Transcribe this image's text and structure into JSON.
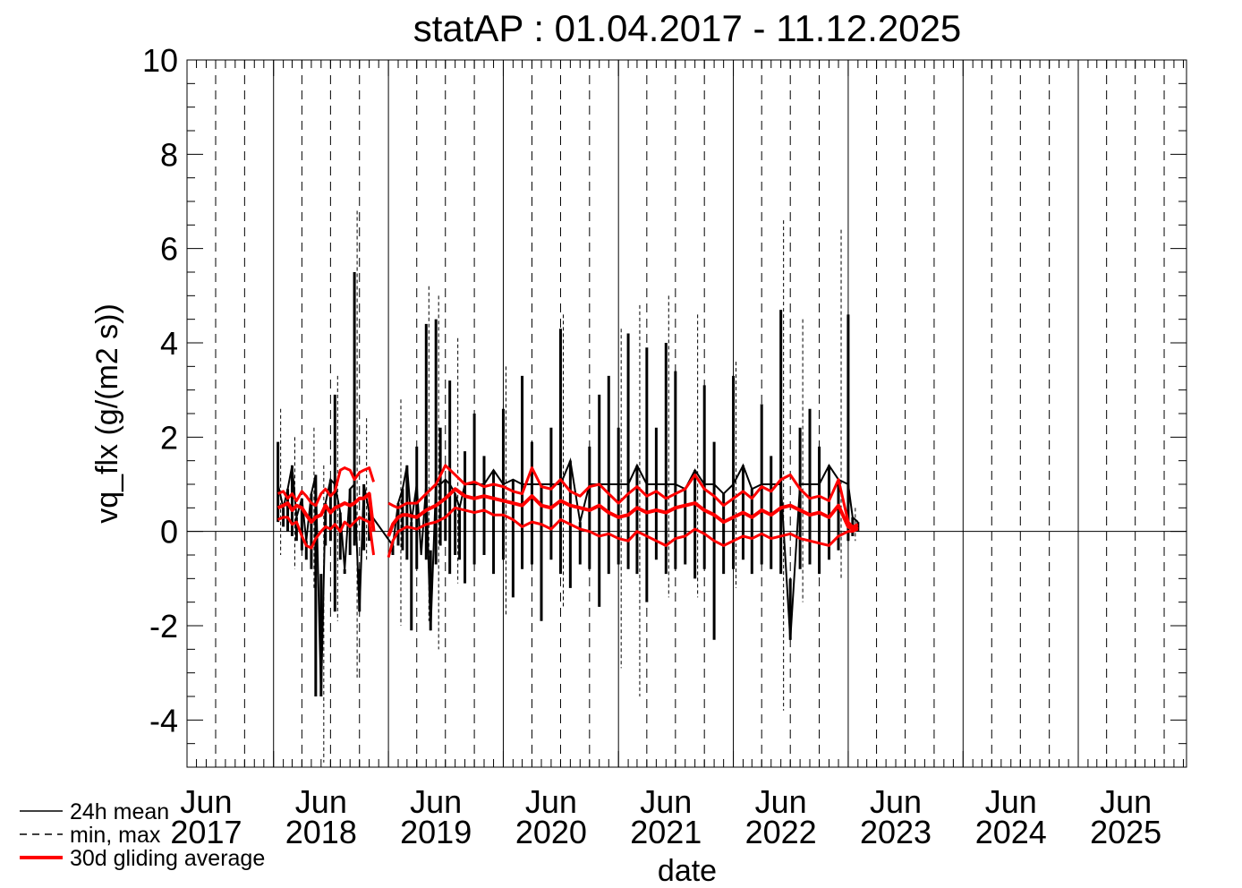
{
  "chart_data": {
    "type": "line",
    "title": "statAP : 01.04.2017 - 11.12.2025",
    "xlabel": "date",
    "ylabel": "vq_flx (g/(m2 s))",
    "xlim": [
      "2017-04-01",
      "2025-12-11"
    ],
    "ylim": [
      -5,
      10
    ],
    "yticks": [
      -4,
      -2,
      0,
      2,
      4,
      6,
      8,
      10
    ],
    "x_tick_labels": [
      {
        "date": "2017-06-01",
        "month": "Jun",
        "year": "2017"
      },
      {
        "date": "2018-06-01",
        "month": "Jun",
        "year": "2018"
      },
      {
        "date": "2019-06-01",
        "month": "Jun",
        "year": "2019"
      },
      {
        "date": "2020-06-01",
        "month": "Jun",
        "year": "2020"
      },
      {
        "date": "2021-06-01",
        "month": "Jun",
        "year": "2021"
      },
      {
        "date": "2022-06-01",
        "month": "Jun",
        "year": "2022"
      },
      {
        "date": "2023-06-01",
        "month": "Jun",
        "year": "2023"
      },
      {
        "date": "2024-06-01",
        "month": "Jun",
        "year": "2024"
      },
      {
        "date": "2025-06-01",
        "month": "Jun",
        "year": "2025"
      }
    ],
    "grid": "vertical lines at year starts (solid) and quarter starts (dashed)",
    "legend_position": "bottom-left",
    "series": [
      {
        "name": "24h mean",
        "style": "solid",
        "color": "#000000",
        "x": [
          "2018-01-15",
          "2018-02-01",
          "2018-02-15",
          "2018-03-01",
          "2018-03-15",
          "2018-04-01",
          "2018-04-15",
          "2018-05-01",
          "2018-05-15",
          "2018-06-01",
          "2018-06-15",
          "2018-07-01",
          "2018-07-15",
          "2018-08-01",
          "2018-08-15",
          "2018-09-01",
          "2018-09-15",
          "2018-10-01",
          "2018-10-15",
          "2018-11-01",
          "2019-01-15",
          "2019-02-01",
          "2019-02-15",
          "2019-03-01",
          "2019-03-15",
          "2019-04-01",
          "2019-04-15",
          "2019-05-01",
          "2019-05-15",
          "2019-06-01",
          "2019-06-15",
          "2019-07-01",
          "2019-07-15",
          "2019-08-01",
          "2019-08-15",
          "2019-09-01",
          "2019-10-01",
          "2019-11-01",
          "2019-12-01",
          "2020-01-01",
          "2020-02-01",
          "2020-03-01",
          "2020-04-01",
          "2020-05-01",
          "2020-06-01",
          "2020-07-01",
          "2020-08-01",
          "2020-09-01",
          "2020-10-01",
          "2020-11-01",
          "2020-12-01",
          "2021-01-01",
          "2021-02-01",
          "2021-03-01",
          "2021-04-01",
          "2021-05-01",
          "2021-06-01",
          "2021-07-01",
          "2021-08-01",
          "2021-09-01",
          "2021-10-01",
          "2021-11-01",
          "2021-12-01",
          "2022-01-01",
          "2022-02-01",
          "2022-03-01",
          "2022-04-01",
          "2022-05-01",
          "2022-06-01",
          "2022-07-01",
          "2022-08-01",
          "2022-09-01",
          "2022-10-01",
          "2022-11-01",
          "2022-12-01",
          "2023-01-01",
          "2023-01-15",
          "2023-02-01"
        ],
        "values": [
          1.9,
          0.5,
          0.9,
          1.4,
          0.3,
          0.7,
          -0.2,
          0.8,
          1.2,
          -3.5,
          0.6,
          1.1,
          2.9,
          0.4,
          -0.8,
          0.9,
          5.5,
          -1.7,
          1.0,
          0.4,
          -0.3,
          0.6,
          0.9,
          1.4,
          0.2,
          1.8,
          -0.5,
          4.4,
          -2.1,
          4.5,
          2.2,
          1.1,
          3.2,
          0.8,
          0.5,
          1.7,
          2.5,
          1.6,
          1.3,
          2.6,
          1.1,
          3.3,
          1.9,
          1.0,
          2.2,
          4.3,
          1.5,
          0.2,
          1.8,
          2.9,
          3.3,
          2.2,
          4.2,
          1.4,
          3.9,
          2.2,
          4.0,
          3.4,
          0.9,
          1.3,
          3.1,
          1.9,
          0.8,
          3.3,
          1.4,
          0.9,
          2.7,
          1.6,
          4.7,
          -2.3,
          2.2,
          2.6,
          1.8,
          1.4,
          1.1,
          4.6,
          0.3,
          0.2
        ],
        "lows": [
          0.2,
          0.1,
          0.0,
          -0.1,
          -0.2,
          -0.4,
          -0.6,
          -0.8,
          -3.5,
          -0.9,
          -0.3,
          -0.2,
          -1.7,
          -0.6,
          -0.9,
          -0.5,
          -0.3,
          -0.8,
          -0.4,
          -0.2,
          -0.5,
          -0.3,
          -0.4,
          -0.6,
          -2.1,
          -0.8,
          -0.5,
          -0.6,
          -0.4,
          -0.7,
          -0.3,
          -0.2,
          -0.9,
          -0.5,
          -0.6,
          -1.1,
          -0.7,
          -0.5,
          -0.9,
          -0.6,
          -1.4,
          -0.8,
          -0.7,
          -1.9,
          -0.6,
          -0.9,
          -1.2,
          -0.7,
          -0.8,
          -1.6,
          -0.9,
          -0.7,
          -0.8,
          -0.9,
          -1.5,
          -0.6,
          -0.9,
          -0.8,
          -0.7,
          -1.0,
          -0.8,
          -2.3,
          -0.9,
          -0.8,
          -0.6,
          -0.9,
          -0.7,
          -0.8,
          -0.9,
          -1.0,
          -0.8,
          -0.7,
          -0.9,
          -0.6,
          -0.4,
          -0.2,
          -0.1,
          0.0
        ]
      },
      {
        "name": "min, max",
        "style": "dashed",
        "color": "#000000",
        "x": [
          "2018-01-15",
          "2018-03-01",
          "2018-05-01",
          "2018-06-01",
          "2018-07-15",
          "2018-09-15",
          "2018-10-15",
          "2019-02-01",
          "2019-05-01",
          "2019-06-01",
          "2019-08-01",
          "2020-01-01",
          "2020-07-01",
          "2021-01-01",
          "2021-03-01",
          "2021-06-01",
          "2021-09-01",
          "2022-01-01",
          "2022-06-01",
          "2022-08-01",
          "2022-12-01",
          "2023-01-15"
        ],
        "max": [
          2.6,
          2.0,
          2.2,
          1.4,
          3.3,
          6.8,
          2.4,
          2.8,
          5.2,
          5.0,
          4.1,
          3.5,
          4.6,
          4.3,
          4.8,
          5.0,
          4.6,
          3.6,
          6.6,
          4.5,
          6.4,
          0.5
        ],
        "min": [
          -0.5,
          -0.8,
          -1.2,
          -4.9,
          -1.9,
          -3.1,
          -0.6,
          -2.0,
          -1.9,
          -2.5,
          -1.1,
          -1.8,
          -1.6,
          -2.9,
          -3.5,
          -1.4,
          -1.4,
          -1.2,
          -3.8,
          -1.5,
          -1.0,
          -0.2
        ]
      },
      {
        "name": "30d gliding average",
        "style": "solid",
        "color": "#ff0000",
        "x": [
          "2018-01-15",
          "2018-02-01",
          "2018-02-15",
          "2018-03-01",
          "2018-03-15",
          "2018-04-01",
          "2018-04-15",
          "2018-05-01",
          "2018-05-15",
          "2018-06-01",
          "2018-06-15",
          "2018-07-01",
          "2018-07-15",
          "2018-08-01",
          "2018-08-15",
          "2018-09-01",
          "2018-09-15",
          "2018-10-01",
          "2018-10-15",
          "2018-11-01",
          "2018-11-15",
          "2019-01-01",
          "2019-01-15",
          "2019-02-01",
          "2019-02-15",
          "2019-03-01",
          "2019-04-01",
          "2019-05-01",
          "2019-06-01",
          "2019-07-01",
          "2019-08-01",
          "2019-09-01",
          "2019-10-01",
          "2019-11-01",
          "2019-12-01",
          "2020-01-01",
          "2020-02-01",
          "2020-03-01",
          "2020-04-01",
          "2020-05-01",
          "2020-06-01",
          "2020-07-01",
          "2020-08-01",
          "2020-09-01",
          "2020-10-01",
          "2020-11-01",
          "2020-12-01",
          "2021-01-01",
          "2021-02-01",
          "2021-03-01",
          "2021-04-01",
          "2021-05-01",
          "2021-06-01",
          "2021-07-01",
          "2021-08-01",
          "2021-09-01",
          "2021-10-01",
          "2021-11-01",
          "2021-12-01",
          "2022-01-01",
          "2022-02-01",
          "2022-03-01",
          "2022-04-01",
          "2022-05-01",
          "2022-06-01",
          "2022-07-01",
          "2022-08-01",
          "2022-09-01",
          "2022-10-01",
          "2022-11-01",
          "2022-12-01",
          "2023-01-01",
          "2023-01-15",
          "2023-02-01"
        ],
        "mean": [
          0.5,
          0.55,
          0.6,
          0.45,
          0.55,
          0.5,
          0.35,
          0.2,
          0.3,
          0.35,
          0.55,
          0.4,
          0.5,
          0.55,
          0.6,
          0.55,
          0.6,
          0.7,
          0.7,
          0.8,
          0.0,
          -0.1,
          0.15,
          0.3,
          0.35,
          0.35,
          0.3,
          0.45,
          0.55,
          0.7,
          0.9,
          0.75,
          0.7,
          0.75,
          0.7,
          0.65,
          0.6,
          0.55,
          0.75,
          0.55,
          0.5,
          0.65,
          0.55,
          0.5,
          0.45,
          0.55,
          0.4,
          0.3,
          0.35,
          0.5,
          0.4,
          0.45,
          0.4,
          0.5,
          0.55,
          0.6,
          0.45,
          0.35,
          0.2,
          0.3,
          0.4,
          0.3,
          0.45,
          0.35,
          0.5,
          0.55,
          0.45,
          0.35,
          0.4,
          0.3,
          0.55,
          0.1,
          0.05,
          0.1
        ],
        "upper": [
          0.8,
          0.85,
          0.7,
          0.8,
          0.65,
          0.85,
          0.75,
          0.6,
          0.55,
          0.8,
          0.9,
          0.75,
          0.85,
          1.3,
          1.35,
          1.3,
          1.1,
          1.25,
          1.3,
          1.35,
          1.05,
          0.6,
          0.55,
          0.5,
          0.55,
          0.6,
          0.6,
          0.8,
          1.0,
          1.4,
          1.2,
          1.0,
          1.05,
          0.95,
          1.0,
          0.95,
          0.85,
          0.8,
          1.35,
          0.95,
          0.9,
          1.1,
          0.85,
          0.75,
          0.95,
          1.0,
          0.8,
          0.6,
          0.8,
          0.95,
          0.75,
          0.85,
          0.7,
          0.8,
          0.9,
          1.2,
          0.9,
          0.75,
          0.55,
          0.7,
          0.85,
          0.7,
          0.95,
          0.85,
          1.1,
          1.2,
          0.9,
          0.7,
          0.75,
          0.65,
          1.1,
          0.2,
          0.1,
          0.15
        ],
        "lower": [
          0.25,
          0.3,
          0.3,
          0.15,
          0.2,
          -0.1,
          -0.3,
          -0.35,
          -0.15,
          0.0,
          0.1,
          0.05,
          0.15,
          0.0,
          0.2,
          0.1,
          0.2,
          0.3,
          0.25,
          0.2,
          -0.5,
          -0.55,
          -0.2,
          0.0,
          0.05,
          0.1,
          0.05,
          0.15,
          0.2,
          0.3,
          0.5,
          0.45,
          0.4,
          0.45,
          0.35,
          0.35,
          0.25,
          0.1,
          0.2,
          0.15,
          0.05,
          0.25,
          0.15,
          0.05,
          0.0,
          -0.1,
          -0.05,
          -0.15,
          -0.2,
          0.0,
          -0.1,
          -0.2,
          -0.3,
          -0.15,
          -0.1,
          0.05,
          -0.05,
          -0.2,
          -0.3,
          -0.2,
          -0.1,
          -0.15,
          -0.05,
          -0.15,
          -0.1,
          -0.05,
          -0.15,
          -0.2,
          -0.25,
          -0.3,
          -0.1,
          0.0,
          0.0,
          0.05
        ]
      }
    ],
    "legend": [
      {
        "label": "24h mean",
        "style": "solid",
        "color": "#000000"
      },
      {
        "label": "min, max",
        "style": "dashed",
        "color": "#000000"
      },
      {
        "label": "30d gliding average",
        "style": "solid",
        "color": "#ff0000"
      }
    ]
  }
}
